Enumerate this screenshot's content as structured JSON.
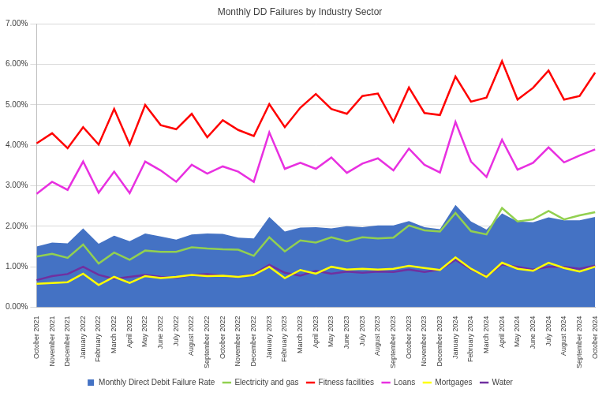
{
  "chart_data": {
    "type": "line",
    "title": "Monthly DD Failures by Industry Sector",
    "categories": [
      "October 2021",
      "November 2021",
      "December 2021",
      "January 2022",
      "February 2022",
      "March 2022",
      "April 2022",
      "May 2022",
      "June 2022",
      "July 2022",
      "August 2022",
      "September 2022",
      "October 2022",
      "November 2022",
      "December 2022",
      "January 2023",
      "February 2023",
      "March 2023",
      "April 2023",
      "May 2023",
      "June 2023",
      "July 2023",
      "August 2023",
      "September 2023",
      "October 2023",
      "November 2023",
      "December 2023",
      "January 2024",
      "February 2024",
      "March 2024",
      "April 2024",
      "May 2024",
      "June 2024",
      "July 2024",
      "August 2024",
      "September 2024",
      "October 2024"
    ],
    "series": [
      {
        "name": "Monthly Direct Debit Failure Rate",
        "type": "area",
        "color": "#4472c4",
        "values": [
          1.5,
          1.6,
          1.58,
          1.95,
          1.57,
          1.77,
          1.63,
          1.82,
          1.75,
          1.67,
          1.8,
          1.82,
          1.81,
          1.72,
          1.7,
          2.23,
          1.87,
          1.97,
          1.98,
          1.95,
          2.0,
          1.98,
          2.02,
          2.02,
          2.13,
          1.98,
          1.93,
          2.53,
          2.12,
          1.92,
          2.32,
          2.12,
          2.1,
          2.22,
          2.15,
          2.15,
          2.23
        ]
      },
      {
        "name": "Electricity and gas",
        "type": "line",
        "color": "#92d050",
        "values": [
          1.25,
          1.32,
          1.22,
          1.55,
          1.08,
          1.35,
          1.17,
          1.4,
          1.37,
          1.37,
          1.48,
          1.45,
          1.43,
          1.42,
          1.27,
          1.73,
          1.38,
          1.65,
          1.6,
          1.73,
          1.63,
          1.73,
          1.7,
          1.72,
          2.02,
          1.9,
          1.87,
          2.33,
          1.88,
          1.8,
          2.45,
          2.12,
          2.17,
          2.38,
          2.17,
          2.27,
          2.35
        ]
      },
      {
        "name": "Fitness facilities",
        "type": "line",
        "color": "#ff0000",
        "values": [
          4.05,
          4.3,
          3.93,
          4.45,
          4.02,
          4.9,
          4.02,
          5.0,
          4.5,
          4.4,
          4.78,
          4.2,
          4.62,
          4.38,
          4.23,
          5.02,
          4.45,
          4.93,
          5.27,
          4.9,
          4.78,
          5.22,
          5.28,
          4.58,
          5.43,
          4.8,
          4.75,
          5.7,
          5.08,
          5.18,
          6.08,
          5.13,
          5.42,
          5.85,
          5.13,
          5.22,
          5.8
        ]
      },
      {
        "name": "Loans",
        "type": "line",
        "color": "#e830e0",
        "values": [
          2.8,
          3.1,
          2.9,
          3.6,
          2.83,
          3.35,
          2.82,
          3.6,
          3.38,
          3.1,
          3.52,
          3.3,
          3.48,
          3.35,
          3.1,
          4.32,
          3.42,
          3.57,
          3.42,
          3.7,
          3.32,
          3.55,
          3.68,
          3.38,
          3.92,
          3.52,
          3.33,
          4.58,
          3.6,
          3.22,
          4.14,
          3.4,
          3.57,
          3.95,
          3.58,
          3.75,
          3.9
        ]
      },
      {
        "name": "Mortgages",
        "type": "line",
        "color": "#ffff00",
        "values": [
          0.58,
          0.6,
          0.62,
          0.83,
          0.55,
          0.75,
          0.6,
          0.77,
          0.72,
          0.75,
          0.8,
          0.77,
          0.78,
          0.75,
          0.8,
          1.0,
          0.72,
          0.92,
          0.83,
          1.0,
          0.93,
          0.95,
          0.93,
          0.95,
          1.02,
          0.97,
          0.92,
          1.23,
          0.95,
          0.75,
          1.1,
          0.95,
          0.9,
          1.1,
          0.97,
          0.88,
          1.0
        ]
      },
      {
        "name": "Water",
        "type": "line",
        "color": "#7030a0",
        "values": [
          0.67,
          0.77,
          0.82,
          1.0,
          0.8,
          0.7,
          0.75,
          0.8,
          0.75,
          0.73,
          0.8,
          0.82,
          0.78,
          0.75,
          0.82,
          1.05,
          0.85,
          0.78,
          0.9,
          0.83,
          0.88,
          0.85,
          0.88,
          0.87,
          0.93,
          0.87,
          0.93,
          1.17,
          0.93,
          0.77,
          1.05,
          1.0,
          0.93,
          1.0,
          1.0,
          0.95,
          1.03
        ]
      }
    ],
    "ylim": [
      0,
      7
    ],
    "yticks": [
      {
        "value": 0,
        "label": "0.00%"
      },
      {
        "value": 1,
        "label": "1.00%"
      },
      {
        "value": 2,
        "label": "2.00%"
      },
      {
        "value": 3,
        "label": "3.00%"
      },
      {
        "value": 4,
        "label": "4.00%"
      },
      {
        "value": 5,
        "label": "5.00%"
      },
      {
        "value": 6,
        "label": "6.00%"
      },
      {
        "value": 7,
        "label": "7.00%"
      }
    ],
    "grid": true,
    "legend": "bottom"
  }
}
